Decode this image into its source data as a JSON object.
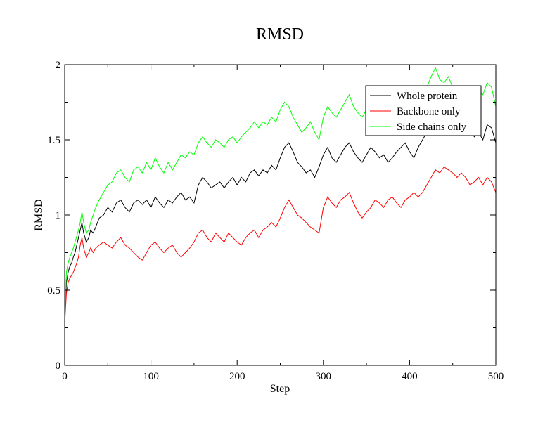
{
  "chart_data": {
    "type": "line",
    "title": "RMSD",
    "xlabel": "Step",
    "ylabel": "RMSD",
    "xlim": [
      0,
      500
    ],
    "ylim": [
      0,
      2
    ],
    "xticks": [
      0,
      100,
      200,
      300,
      400,
      500
    ],
    "yticks": [
      0,
      0.5,
      1,
      1.5,
      2
    ],
    "xtick_labels": [
      "0",
      "100",
      "200",
      "300",
      "400",
      "500"
    ],
    "ytick_labels": [
      "0",
      "0.5",
      "1",
      "1.5",
      "2"
    ],
    "legend_position": "top-right",
    "series": [
      {
        "name": "Whole protein",
        "color": "#000000",
        "x": [
          0,
          2,
          4,
          6,
          8,
          10,
          12,
          14,
          16,
          18,
          20,
          22,
          25,
          28,
          30,
          33,
          36,
          40,
          45,
          50,
          55,
          60,
          65,
          70,
          75,
          80,
          85,
          90,
          95,
          100,
          105,
          110,
          115,
          120,
          125,
          130,
          135,
          140,
          145,
          150,
          155,
          160,
          165,
          170,
          175,
          180,
          185,
          190,
          195,
          200,
          205,
          210,
          215,
          220,
          225,
          230,
          235,
          240,
          245,
          250,
          255,
          260,
          265,
          270,
          275,
          280,
          285,
          290,
          295,
          300,
          305,
          310,
          315,
          320,
          325,
          330,
          335,
          340,
          345,
          350,
          355,
          360,
          365,
          370,
          375,
          380,
          385,
          390,
          395,
          400,
          405,
          410,
          415,
          420,
          425,
          430,
          435,
          440,
          445,
          450,
          455,
          460,
          465,
          470,
          475,
          480,
          485,
          490,
          495,
          500
        ],
        "y": [
          0.3,
          0.55,
          0.62,
          0.66,
          0.68,
          0.72,
          0.75,
          0.8,
          0.85,
          0.9,
          0.95,
          0.88,
          0.82,
          0.85,
          0.9,
          0.88,
          0.92,
          0.98,
          1.0,
          1.05,
          1.02,
          1.08,
          1.1,
          1.05,
          1.02,
          1.08,
          1.1,
          1.07,
          1.1,
          1.05,
          1.12,
          1.08,
          1.05,
          1.1,
          1.08,
          1.12,
          1.15,
          1.1,
          1.12,
          1.08,
          1.2,
          1.25,
          1.22,
          1.18,
          1.2,
          1.22,
          1.18,
          1.22,
          1.25,
          1.2,
          1.25,
          1.22,
          1.28,
          1.3,
          1.26,
          1.3,
          1.28,
          1.33,
          1.3,
          1.38,
          1.45,
          1.48,
          1.42,
          1.35,
          1.32,
          1.28,
          1.3,
          1.25,
          1.32,
          1.4,
          1.45,
          1.38,
          1.35,
          1.4,
          1.45,
          1.48,
          1.42,
          1.38,
          1.35,
          1.4,
          1.45,
          1.42,
          1.38,
          1.4,
          1.35,
          1.38,
          1.42,
          1.45,
          1.48,
          1.42,
          1.38,
          1.45,
          1.5,
          1.55,
          1.6,
          1.65,
          1.62,
          1.6,
          1.58,
          1.62,
          1.58,
          1.55,
          1.6,
          1.58,
          1.52,
          1.55,
          1.5,
          1.6,
          1.58,
          1.48
        ]
      },
      {
        "name": "Backbone only",
        "color": "#ff0000",
        "x": [
          0,
          2,
          4,
          6,
          8,
          10,
          12,
          14,
          16,
          18,
          20,
          22,
          25,
          28,
          30,
          33,
          36,
          40,
          45,
          50,
          55,
          60,
          65,
          70,
          75,
          80,
          85,
          90,
          95,
          100,
          105,
          110,
          115,
          120,
          125,
          130,
          135,
          140,
          145,
          150,
          155,
          160,
          165,
          170,
          175,
          180,
          185,
          190,
          195,
          200,
          205,
          210,
          215,
          220,
          225,
          230,
          235,
          240,
          245,
          250,
          255,
          260,
          265,
          270,
          275,
          280,
          285,
          290,
          295,
          300,
          305,
          310,
          315,
          320,
          325,
          330,
          335,
          340,
          345,
          350,
          355,
          360,
          365,
          370,
          375,
          380,
          385,
          390,
          395,
          400,
          405,
          410,
          415,
          420,
          425,
          430,
          435,
          440,
          445,
          450,
          455,
          460,
          465,
          470,
          475,
          480,
          485,
          490,
          495,
          500
        ],
        "y": [
          0.28,
          0.48,
          0.55,
          0.58,
          0.6,
          0.62,
          0.65,
          0.68,
          0.72,
          0.8,
          0.85,
          0.78,
          0.72,
          0.75,
          0.78,
          0.75,
          0.78,
          0.8,
          0.82,
          0.8,
          0.78,
          0.82,
          0.85,
          0.8,
          0.78,
          0.75,
          0.72,
          0.7,
          0.75,
          0.8,
          0.82,
          0.78,
          0.75,
          0.78,
          0.8,
          0.75,
          0.72,
          0.75,
          0.78,
          0.82,
          0.88,
          0.9,
          0.85,
          0.82,
          0.88,
          0.85,
          0.82,
          0.88,
          0.85,
          0.82,
          0.8,
          0.85,
          0.88,
          0.9,
          0.85,
          0.9,
          0.92,
          0.95,
          0.92,
          0.98,
          1.05,
          1.1,
          1.05,
          1.0,
          0.98,
          0.95,
          0.92,
          0.9,
          0.88,
          1.05,
          1.12,
          1.08,
          1.05,
          1.1,
          1.12,
          1.15,
          1.08,
          1.02,
          0.98,
          1.02,
          1.05,
          1.1,
          1.08,
          1.05,
          1.1,
          1.12,
          1.08,
          1.05,
          1.1,
          1.12,
          1.15,
          1.12,
          1.15,
          1.2,
          1.25,
          1.3,
          1.28,
          1.32,
          1.3,
          1.28,
          1.25,
          1.28,
          1.25,
          1.2,
          1.22,
          1.25,
          1.2,
          1.25,
          1.22,
          1.15
        ]
      },
      {
        "name": "Side chains only",
        "color": "#00ff00",
        "x": [
          0,
          2,
          4,
          6,
          8,
          10,
          12,
          14,
          16,
          18,
          20,
          22,
          25,
          28,
          30,
          33,
          36,
          40,
          45,
          50,
          55,
          60,
          65,
          70,
          75,
          80,
          85,
          90,
          95,
          100,
          105,
          110,
          115,
          120,
          125,
          130,
          135,
          140,
          145,
          150,
          155,
          160,
          165,
          170,
          175,
          180,
          185,
          190,
          195,
          200,
          205,
          210,
          215,
          220,
          225,
          230,
          235,
          240,
          245,
          250,
          255,
          260,
          265,
          270,
          275,
          280,
          285,
          290,
          295,
          300,
          305,
          310,
          315,
          320,
          325,
          330,
          335,
          340,
          345,
          350,
          355,
          360,
          365,
          370,
          375,
          380,
          385,
          390,
          395,
          400,
          405,
          410,
          415,
          420,
          425,
          430,
          435,
          440,
          445,
          450,
          455,
          460,
          465,
          470,
          475,
          480,
          485,
          490,
          495,
          500
        ],
        "y": [
          0.32,
          0.62,
          0.68,
          0.72,
          0.75,
          0.78,
          0.82,
          0.86,
          0.9,
          0.95,
          1.02,
          0.95,
          0.88,
          0.9,
          0.95,
          1.0,
          1.05,
          1.1,
          1.15,
          1.2,
          1.22,
          1.28,
          1.3,
          1.25,
          1.22,
          1.3,
          1.32,
          1.28,
          1.35,
          1.3,
          1.38,
          1.32,
          1.28,
          1.35,
          1.3,
          1.35,
          1.4,
          1.38,
          1.42,
          1.4,
          1.48,
          1.52,
          1.48,
          1.45,
          1.5,
          1.48,
          1.45,
          1.5,
          1.52,
          1.48,
          1.52,
          1.55,
          1.58,
          1.62,
          1.58,
          1.62,
          1.6,
          1.65,
          1.62,
          1.7,
          1.75,
          1.72,
          1.65,
          1.6,
          1.55,
          1.58,
          1.62,
          1.55,
          1.5,
          1.65,
          1.72,
          1.68,
          1.65,
          1.7,
          1.75,
          1.8,
          1.72,
          1.68,
          1.65,
          1.7,
          1.72,
          1.68,
          1.65,
          1.7,
          1.65,
          1.62,
          1.68,
          1.72,
          1.7,
          1.65,
          1.6,
          1.7,
          1.78,
          1.85,
          1.92,
          1.98,
          1.9,
          1.88,
          1.92,
          1.85,
          1.8,
          1.82,
          1.85,
          1.8,
          1.75,
          1.82,
          1.8,
          1.88,
          1.85,
          1.72
        ]
      }
    ]
  }
}
